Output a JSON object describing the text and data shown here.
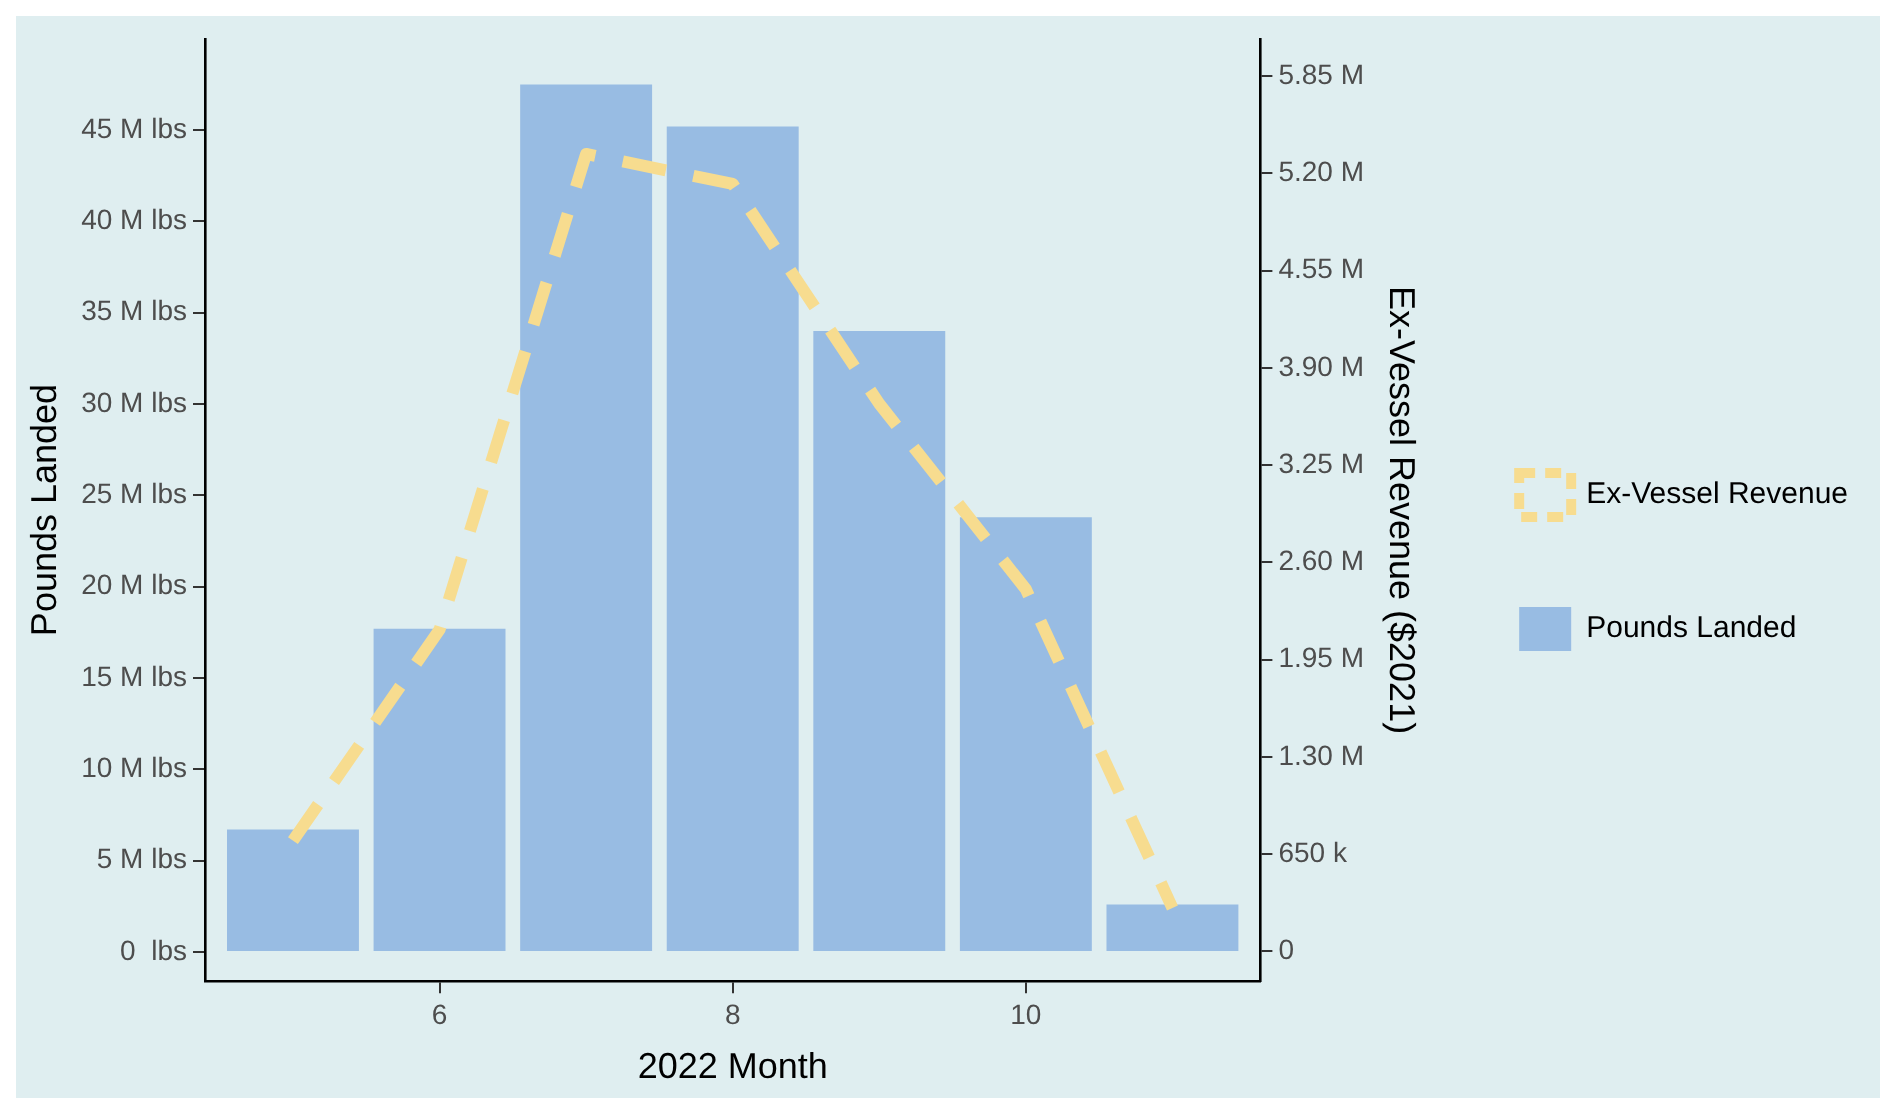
{
  "chart_data": {
    "type": "bar",
    "xlabel": "2022 Month",
    "ylabel": "Pounds Landed",
    "y2label": "Ex-Vessel Revenue ($2021)",
    "x": [
      5,
      6,
      7,
      8,
      9,
      10,
      11
    ],
    "series": [
      {
        "name": "Ex-Vessel Revenue",
        "type": "line",
        "axis": "y2",
        "color": "#f7dc8f",
        "line_style": "dashed",
        "values": [
          0.74,
          2.15,
          5.33,
          5.13,
          3.66,
          2.42,
          0.29
        ]
      },
      {
        "name": "Pounds Landed",
        "axis": "y",
        "color": "#98bce3",
        "values": [
          6.7,
          17.7,
          47.5,
          45.2,
          34.0,
          23.8,
          2.6
        ]
      }
    ],
    "xlim": [
      4.4,
      11.6
    ],
    "xticks": [
      6,
      8,
      10
    ],
    "ylim": [
      -1.6,
      50
    ],
    "yticks": [
      {
        "value": 0,
        "label": "0  lbs"
      },
      {
        "value": 5,
        "label": "5 M lbs"
      },
      {
        "value": 10,
        "label": "10 M lbs"
      },
      {
        "value": 15,
        "label": "15 M lbs"
      },
      {
        "value": 20,
        "label": "20 M lbs"
      },
      {
        "value": 25,
        "label": "25 M lbs"
      },
      {
        "value": 30,
        "label": "30 M lbs"
      },
      {
        "value": 35,
        "label": "35 M lbs"
      },
      {
        "value": 40,
        "label": "40 M lbs"
      },
      {
        "value": 45,
        "label": "45 M lbs"
      }
    ],
    "y2lim": [
      -0.2,
      6.1
    ],
    "y2ticks": [
      {
        "value": 0,
        "label": "0"
      },
      {
        "value": 0.65,
        "label": "650 k"
      },
      {
        "value": 1.3,
        "label": "1.30 M"
      },
      {
        "value": 1.95,
        "label": "1.95 M"
      },
      {
        "value": 2.6,
        "label": "2.60 M"
      },
      {
        "value": 3.25,
        "label": "3.25 M"
      },
      {
        "value": 3.9,
        "label": "3.90 M"
      },
      {
        "value": 4.55,
        "label": "4.55 M"
      },
      {
        "value": 5.2,
        "label": "5.20 M"
      },
      {
        "value": 5.85,
        "label": "5.85 M"
      }
    ],
    "grid": false,
    "legend": "right",
    "marker": "none"
  }
}
